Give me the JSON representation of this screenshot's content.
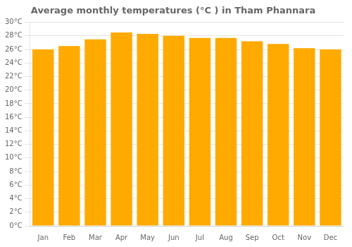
{
  "chart_data": {
    "type": "bar",
    "title": "Average monthly temperatures (°C ) in Tham Phannara",
    "categories": [
      "Jan",
      "Feb",
      "Mar",
      "Apr",
      "May",
      "Jun",
      "Jul",
      "Aug",
      "Sep",
      "Oct",
      "Nov",
      "Dec"
    ],
    "values": [
      26.0,
      26.5,
      27.5,
      28.5,
      28.3,
      28.0,
      27.7,
      27.7,
      27.2,
      26.8,
      26.2,
      26.0
    ],
    "color": "#FFAA00",
    "ylim": [
      0,
      30
    ],
    "yticks": [
      {
        "value": 0,
        "label": "0°C"
      },
      {
        "value": 2,
        "label": "2°C"
      },
      {
        "value": 4,
        "label": "4°C"
      },
      {
        "value": 6,
        "label": "6°C"
      },
      {
        "value": 8,
        "label": "8°C"
      },
      {
        "value": 10,
        "label": "10°C"
      },
      {
        "value": 12,
        "label": "12°C"
      },
      {
        "value": 14,
        "label": "14°C"
      },
      {
        "value": 16,
        "label": "16°C"
      },
      {
        "value": 18,
        "label": "18°C"
      },
      {
        "value": 20,
        "label": "20°C"
      },
      {
        "value": 22,
        "label": "22°C"
      },
      {
        "value": 24,
        "label": "24°C"
      },
      {
        "value": 26,
        "label": "26°C"
      },
      {
        "value": 28,
        "label": "28°C"
      },
      {
        "value": 30,
        "label": "30°C"
      }
    ],
    "grid": true
  }
}
